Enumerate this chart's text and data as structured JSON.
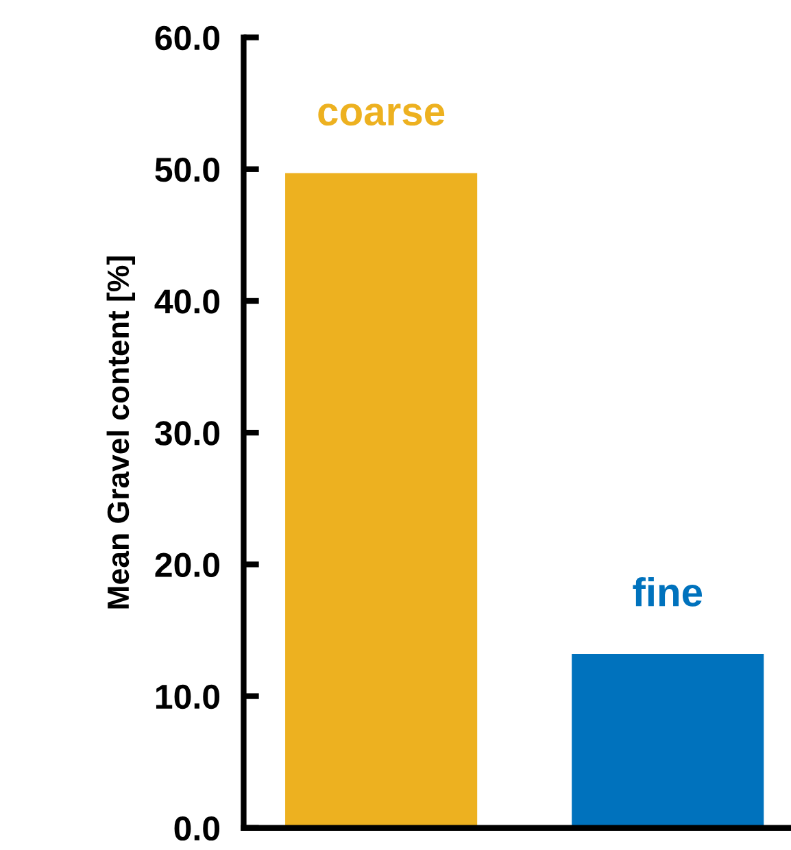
{
  "chart_data": {
    "type": "bar",
    "categories": [
      "coarse",
      "fine"
    ],
    "values": [
      49.7,
      13.2
    ],
    "colors": [
      "#edb120",
      "#0072bd"
    ],
    "ylabel": "Mean Gravel content [%]",
    "ylim": [
      0,
      60
    ],
    "yticks": [
      {
        "value": 0,
        "label": "0.0"
      },
      {
        "value": 10,
        "label": "10.0"
      },
      {
        "value": 20,
        "label": "20.0"
      },
      {
        "value": 30,
        "label": "30.0"
      },
      {
        "value": 40,
        "label": "40.0"
      },
      {
        "value": 50,
        "label": "50.0"
      },
      {
        "value": 60,
        "label": "60.0"
      }
    ],
    "grid": false,
    "legend": false
  }
}
